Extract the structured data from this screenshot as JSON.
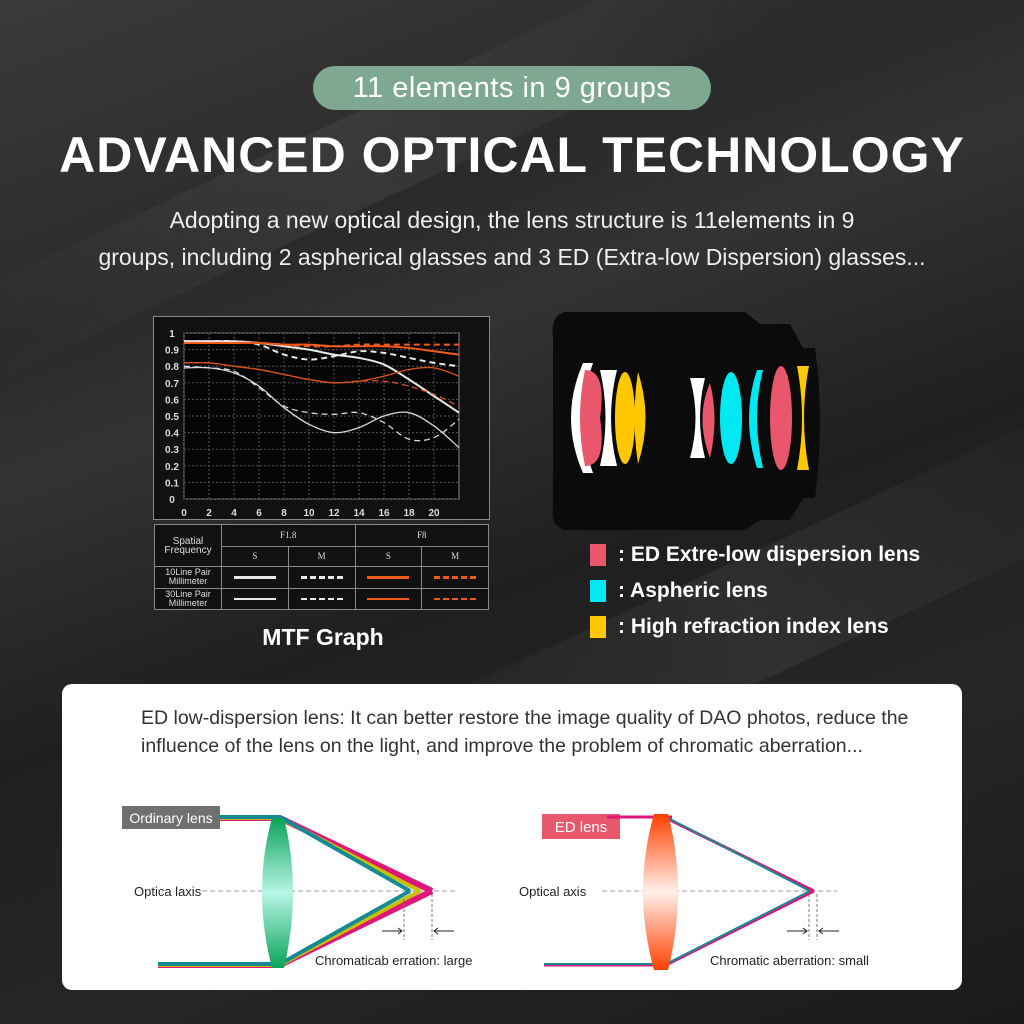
{
  "badge": "11 elements in 9 groups",
  "title": "ADVANCED OPTICAL TECHNOLOGY",
  "subtitle": {
    "line1": "Adopting a new optical design, the lens structure is 11elements in 9",
    "line2": "groups, including 2 aspherical glasses and 3 ED (Extra-low Dispersion) glasses..."
  },
  "mtf": {
    "caption": "MTF Graph",
    "table": {
      "header": "Spatial Frequency",
      "apertures": [
        "F1.8",
        "F8"
      ],
      "sm": [
        "S",
        "M",
        "S",
        "M"
      ],
      "rows": [
        "10Line Pair Millimeter",
        "30Line Pair Millimeter"
      ]
    },
    "colors": {
      "white": "#e8e8e8",
      "orange": "#f05a1a"
    }
  },
  "chart_data": {
    "type": "line",
    "title": "",
    "xlabel": "",
    "ylabel": "",
    "x": [
      0,
      2,
      4,
      6,
      8,
      10,
      12,
      14,
      16,
      18,
      20,
      22
    ],
    "xticks": [
      "0",
      "2",
      "4",
      "6",
      "8",
      "10",
      "12",
      "14",
      "16",
      "18",
      "20"
    ],
    "yticks": [
      "0",
      "0.1",
      "0.2",
      "0.3",
      "0.4",
      "0.5",
      "0.6",
      "0.7",
      "0.8",
      "0.9",
      "1"
    ],
    "xlim": [
      0,
      22
    ],
    "ylim": [
      0,
      1
    ],
    "grid": true,
    "series": [
      {
        "aperture": "F1.8",
        "type": "S",
        "freq": "10",
        "color": "#e8e8e8",
        "dash": false,
        "values": [
          0.95,
          0.95,
          0.95,
          0.94,
          0.92,
          0.9,
          0.87,
          0.85,
          0.81,
          0.72,
          0.62,
          0.52
        ]
      },
      {
        "aperture": "F1.8",
        "type": "M",
        "freq": "10",
        "color": "#e8e8e8",
        "dash": true,
        "values": [
          0.95,
          0.95,
          0.95,
          0.93,
          0.87,
          0.84,
          0.86,
          0.89,
          0.88,
          0.85,
          0.82,
          0.8
        ]
      },
      {
        "aperture": "F8",
        "type": "S",
        "freq": "10",
        "color": "#f05a1a",
        "dash": false,
        "values": [
          0.94,
          0.94,
          0.94,
          0.94,
          0.93,
          0.93,
          0.92,
          0.92,
          0.92,
          0.91,
          0.89,
          0.87
        ]
      },
      {
        "aperture": "F8",
        "type": "M",
        "freq": "10",
        "color": "#f05a1a",
        "dash": true,
        "values": [
          0.94,
          0.94,
          0.94,
          0.94,
          0.93,
          0.92,
          0.92,
          0.93,
          0.93,
          0.93,
          0.93,
          0.93
        ]
      },
      {
        "aperture": "F1.8",
        "type": "S",
        "freq": "30",
        "color": "#d8d8d8",
        "dash": false,
        "values": [
          0.79,
          0.79,
          0.76,
          0.68,
          0.55,
          0.45,
          0.4,
          0.43,
          0.5,
          0.52,
          0.44,
          0.31
        ]
      },
      {
        "aperture": "F1.8",
        "type": "M",
        "freq": "30",
        "color": "#d8d8d8",
        "dash": true,
        "values": [
          0.8,
          0.79,
          0.77,
          0.67,
          0.56,
          0.52,
          0.51,
          0.52,
          0.46,
          0.36,
          0.37,
          0.48
        ]
      },
      {
        "aperture": "F8",
        "type": "S",
        "freq": "30",
        "color": "#e0541a",
        "dash": false,
        "values": [
          0.82,
          0.82,
          0.8,
          0.78,
          0.75,
          0.72,
          0.7,
          0.71,
          0.74,
          0.78,
          0.79,
          0.74
        ]
      },
      {
        "aperture": "F8",
        "type": "M",
        "freq": "30",
        "color": "#e0541a",
        "dash": true,
        "values": [
          0.82,
          0.82,
          0.8,
          0.78,
          0.75,
          0.72,
          0.7,
          0.71,
          0.71,
          0.68,
          0.63,
          0.56
        ]
      }
    ]
  },
  "legend": [
    {
      "label": ": ED Extre-low dispersion lens",
      "color": "#e8576b"
    },
    {
      "label": ": Aspheric lens",
      "color": "#00e8f2"
    },
    {
      "label": ": High refraction index lens",
      "color": "#ffc800"
    }
  ],
  "card": {
    "description": "ED low-dispersion lens: It can better restore the image quality of DAO photos, reduce the influence of the lens on the light, and improve the problem of chromatic aberration...",
    "ordinary": {
      "tag": "Ordinary lens",
      "axis": "Optica laxis",
      "aberration": "Chromaticab erration: large",
      "tag_color": "#707070"
    },
    "ed": {
      "tag": "ED lens",
      "axis": "Optical axis",
      "aberration": "Chromatic aberration: small",
      "tag_color": "#e8576b"
    }
  }
}
